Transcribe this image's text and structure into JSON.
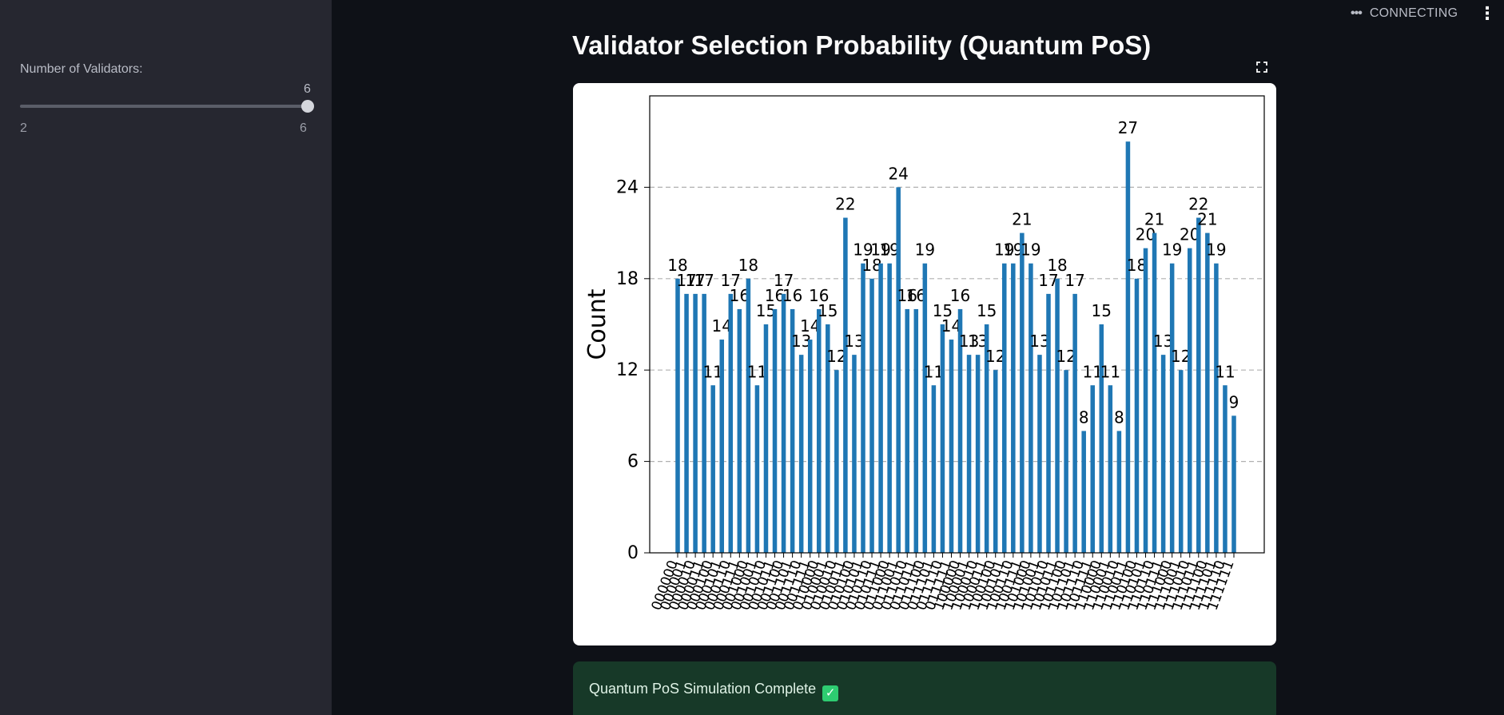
{
  "sidebar": {
    "slider": {
      "label": "Number of Validators:",
      "value": "6",
      "min": "2",
      "max": "6"
    }
  },
  "status": {
    "text": "CONNECTING"
  },
  "main": {
    "title": "Validator Selection Probability (Quantum PoS)",
    "success": {
      "message": "Quantum PoS Simulation Complete"
    }
  },
  "chart_data": {
    "type": "bar",
    "title": "",
    "xlabel": "",
    "ylabel": "Count",
    "ylim": [
      0,
      30
    ],
    "yticks": [
      0,
      6,
      12,
      18,
      24
    ],
    "grid": "y dashed",
    "bar_color": "#1f77b4",
    "categories": [
      "000000",
      "000001",
      "000010",
      "000011",
      "000100",
      "000101",
      "000110",
      "000111",
      "001000",
      "001001",
      "001010",
      "001011",
      "001100",
      "001101",
      "001110",
      "001111",
      "010000",
      "010001",
      "010010",
      "010011",
      "010100",
      "010101",
      "010110",
      "010111",
      "011000",
      "011001",
      "011010",
      "011011",
      "011100",
      "011101",
      "011110",
      "011111",
      "100000",
      "100001",
      "100010",
      "100011",
      "100100",
      "100101",
      "100110",
      "100111",
      "101000",
      "101001",
      "101010",
      "101011",
      "101100",
      "101101",
      "101110",
      "101111",
      "110000",
      "110001",
      "110010",
      "110011",
      "110100",
      "110101",
      "110110",
      "110111",
      "111000",
      "111001",
      "111010",
      "111011",
      "111100",
      "111101",
      "111110",
      "111111"
    ],
    "values": [
      18,
      17,
      17,
      17,
      11,
      14,
      17,
      16,
      18,
      11,
      15,
      16,
      17,
      16,
      13,
      14,
      16,
      15,
      12,
      22,
      13,
      19,
      18,
      19,
      19,
      24,
      16,
      16,
      19,
      11,
      15,
      14,
      16,
      13,
      13,
      15,
      12,
      19,
      19,
      21,
      19,
      13,
      17,
      18,
      12,
      17,
      8,
      11,
      15,
      11,
      8,
      27,
      18,
      20,
      21,
      13,
      19,
      12,
      20,
      22,
      21,
      19,
      11,
      9
    ]
  }
}
